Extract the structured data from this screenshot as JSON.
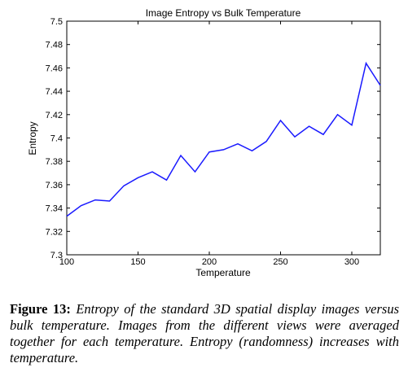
{
  "chart_data": {
    "type": "line",
    "title": "Image Entropy vs Bulk Temperature",
    "xlabel": "Temperature",
    "ylabel": "Entropy",
    "xlim": [
      100,
      320
    ],
    "ylim": [
      7.3,
      7.5
    ],
    "xticks": [
      100,
      150,
      200,
      250,
      300
    ],
    "xtick_labels": [
      "100",
      "150",
      "200",
      "250",
      "300"
    ],
    "yticks": [
      7.3,
      7.32,
      7.34,
      7.36,
      7.38,
      7.4,
      7.42,
      7.44,
      7.46,
      7.48,
      7.5
    ],
    "ytick_labels": [
      "7.3",
      "7.32",
      "7.34",
      "7.36",
      "7.38",
      "7.4",
      "7.42",
      "7.44",
      "7.46",
      "7.48",
      "7.5"
    ],
    "grid": false,
    "line_color": "#1a1aff",
    "series": [
      {
        "x": [
          100,
          110,
          120,
          130,
          140,
          150,
          160,
          170,
          180,
          190,
          200,
          210,
          220,
          230,
          240,
          250,
          260,
          270,
          280,
          290,
          300,
          310,
          320
        ],
        "values": [
          7.333,
          7.342,
          7.347,
          7.346,
          7.359,
          7.366,
          7.371,
          7.364,
          7.385,
          7.371,
          7.388,
          7.39,
          7.395,
          7.389,
          7.397,
          7.415,
          7.401,
          7.41,
          7.403,
          7.42,
          7.411,
          7.464,
          7.445
        ]
      }
    ]
  },
  "caption": {
    "label": "Figure 13:",
    "text": "Entropy of the standard 3D spatial display images versus bulk temperature. Images from the different views were averaged together for each temperature. Entropy (randomness) increases with temperature."
  }
}
